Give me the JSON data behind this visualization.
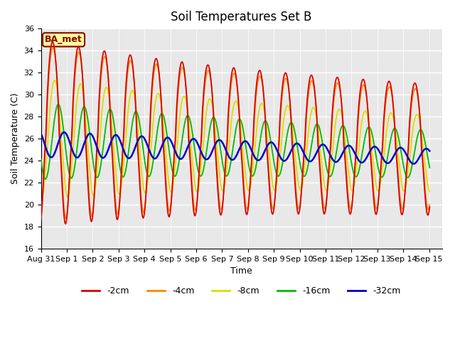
{
  "title": "Soil Temperatures Set B",
  "xlabel": "Time",
  "ylabel": "Soil Temperature (C)",
  "ylim": [
    16,
    36
  ],
  "background_color": "#e8e8e8",
  "figure_bg": "#ffffff",
  "annotation": "BA_met",
  "colors": {
    "-2cm": "#dd0000",
    "-4cm": "#ff8800",
    "-8cm": "#dddd00",
    "-16cm": "#00bb00",
    "-32cm": "#0000cc"
  },
  "legend_labels": [
    "-2cm",
    "-4cm",
    "-8cm",
    "-16cm",
    "-32cm"
  ],
  "grid_color": "#ffffff",
  "tick_labels": [
    "Aug 31",
    "Sep 1",
    "Sep 2",
    "Sep 3",
    "Sep 4",
    "Sep 5",
    "Sep 6",
    "Sep 7",
    "Sep 8",
    "Sep 9",
    "Sep 10",
    "Sep 11",
    "Sep 12",
    "Sep 13",
    "Sep 14",
    "Sep 15"
  ]
}
